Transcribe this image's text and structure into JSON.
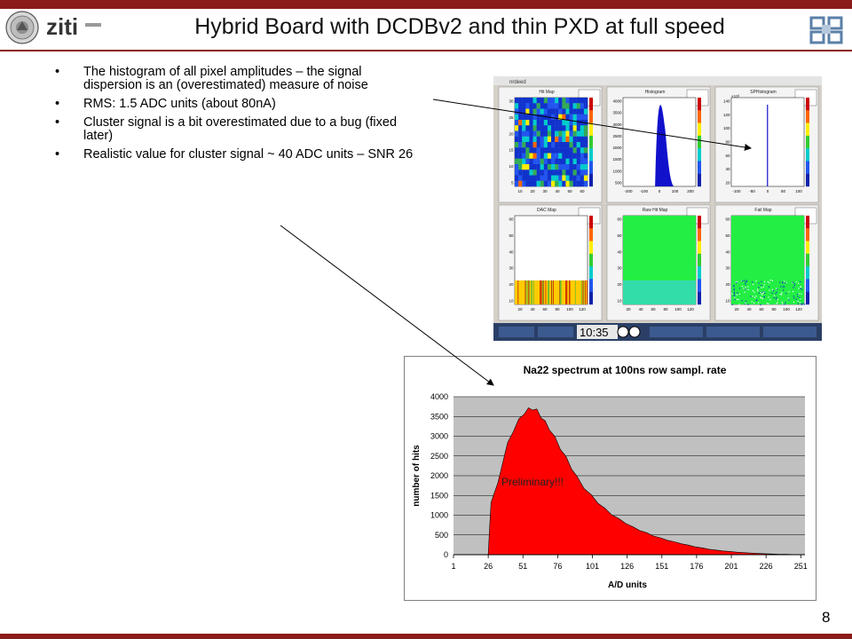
{
  "slide": {
    "title": "Hybrid Board with DCDBv2 and thin PXD at full speed",
    "page_number": "8",
    "logo_text": "ziti",
    "bullets": [
      "The histogram of all pixel amplitudes – the signal dispersion is an (overestimated) measure of noise",
      "RMS: 1.5 ADC units (about 80nA)",
      "Cluster signal is a bit overestimated due to a bug (fixed later)",
      "Realistic value for cluster signal ~ 40 ADC units – SNR 26"
    ]
  },
  "screenshot": {
    "window_title": "nrdeed",
    "clock": "10:35",
    "panels": [
      {
        "title": "Hit Map",
        "y_ticks": [
          "30",
          "25",
          "20",
          "15",
          "10",
          "5"
        ],
        "x_ticks": [
          "10",
          "20",
          "30",
          "40",
          "50",
          "60"
        ]
      },
      {
        "title": "Histogram",
        "y_ticks": [
          "4000",
          "3500",
          "3000",
          "2500",
          "2000",
          "1500",
          "1000",
          "500"
        ],
        "x_ticks": [
          "-200",
          "-100",
          "0",
          "100",
          "200"
        ]
      },
      {
        "title": "SPHistogram",
        "exponent": "×10³",
        "y_ticks": [
          "140",
          "120",
          "100",
          "80",
          "60",
          "40",
          "20"
        ],
        "x_ticks": [
          "-100",
          "-50",
          "0",
          "50",
          "100"
        ]
      },
      {
        "title": "DAC Map",
        "y_ticks": [
          "60",
          "50",
          "40",
          "30",
          "20",
          "10"
        ],
        "x_ticks": [
          "20",
          "40",
          "60",
          "80",
          "100",
          "120"
        ]
      },
      {
        "title": "Raw Hit Map",
        "y_ticks": [
          "60",
          "50",
          "40",
          "30",
          "20",
          "10"
        ],
        "x_ticks": [
          "20",
          "40",
          "60",
          "80",
          "100",
          "120"
        ]
      },
      {
        "title": "Fail Map",
        "y_ticks": [
          "60",
          "50",
          "40",
          "30",
          "20",
          "10"
        ],
        "x_ticks": [
          "20",
          "40",
          "60",
          "80",
          "100",
          "120"
        ]
      }
    ]
  },
  "chart_data": {
    "type": "area",
    "title": "Na22 spectrum at 100ns row sampl. rate",
    "xlabel": "A/D units",
    "ylabel": "number of hits",
    "annotation": "Preliminary!!!",
    "xlim": [
      1,
      254
    ],
    "ylim": [
      0,
      4000
    ],
    "x_ticks": [
      1,
      26,
      51,
      76,
      101,
      126,
      151,
      176,
      201,
      226,
      251
    ],
    "y_ticks": [
      0,
      500,
      1000,
      1500,
      2000,
      2500,
      3000,
      3500,
      4000
    ],
    "grid": true,
    "fill_color": "#ff0000",
    "plot_background": "#c0c0c0",
    "x": [
      26,
      27,
      28,
      30,
      33,
      36,
      40,
      44,
      48,
      52,
      55,
      58,
      61,
      64,
      67,
      70,
      74,
      78,
      82,
      86,
      90,
      95,
      100,
      105,
      110,
      115,
      120,
      125,
      130,
      135,
      140,
      145,
      150,
      155,
      160,
      165,
      170,
      175,
      180,
      185,
      190,
      195,
      200,
      205,
      210,
      215,
      220,
      225,
      230,
      235,
      240,
      245,
      250
    ],
    "values": [
      0,
      700,
      1300,
      1550,
      1800,
      2300,
      2800,
      3150,
      3400,
      3600,
      3680,
      3700,
      3650,
      3500,
      3350,
      3200,
      2950,
      2700,
      2450,
      2200,
      1950,
      1700,
      1500,
      1320,
      1160,
      1020,
      900,
      800,
      700,
      620,
      550,
      480,
      420,
      370,
      320,
      280,
      240,
      200,
      170,
      140,
      115,
      95,
      80,
      65,
      50,
      40,
      32,
      25,
      18,
      12,
      8,
      5,
      3
    ]
  }
}
